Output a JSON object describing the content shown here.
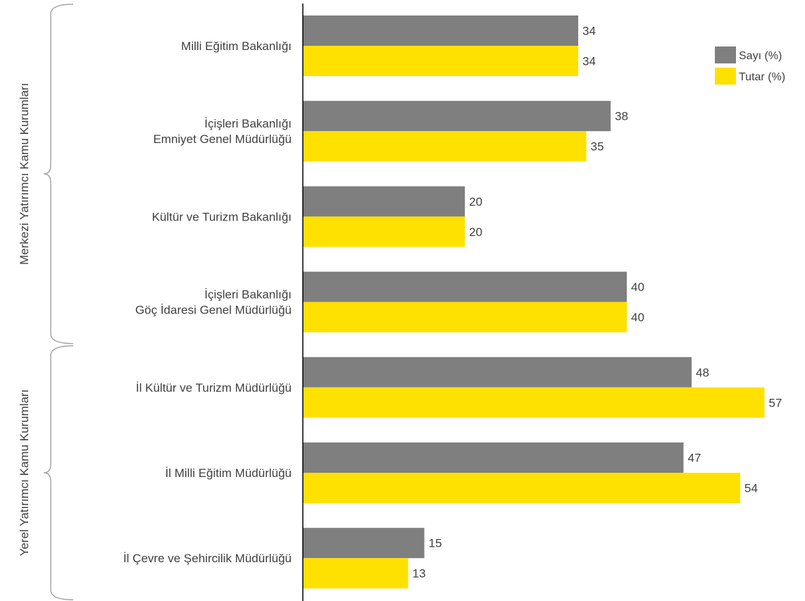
{
  "chart_data": {
    "type": "bar",
    "orientation": "horizontal",
    "categories": [
      [
        "Milli Eğitim Bakanlığı"
      ],
      [
        "İçişleri Bakanlığı",
        "Emniyet Genel Müdürlüğü"
      ],
      [
        "Kültür ve Turizm Bakanlığı"
      ],
      [
        "İçişleri Bakanlığı",
        "Göç İdaresi Genel Müdürlüğü"
      ],
      [
        "İl Kültür ve Turizm Müdürlüğü"
      ],
      [
        "İl Milli Eğitim Müdürlüğü"
      ],
      [
        "İl Çevre ve Şehircilik Müdürlüğü"
      ]
    ],
    "series": [
      {
        "name": "Sayı (%)",
        "values": [
          34,
          38,
          20,
          40,
          48,
          47,
          15
        ],
        "color": "#7f7f7f"
      },
      {
        "name": "Tutar (%)",
        "values": [
          34,
          35,
          20,
          40,
          57,
          54,
          13
        ],
        "color": "#ffe100"
      }
    ],
    "groups": [
      {
        "label": "Merkezi Yatırımcı Kamu Kurumları",
        "categories": [
          0,
          1,
          2,
          3
        ]
      },
      {
        "label": "Yerel Yatırımcı Kamu Kurumları",
        "categories": [
          4,
          5,
          6
        ]
      }
    ],
    "xlim": [
      0,
      60
    ],
    "grid": false,
    "legend_position": "top-right",
    "data_labels": true
  }
}
